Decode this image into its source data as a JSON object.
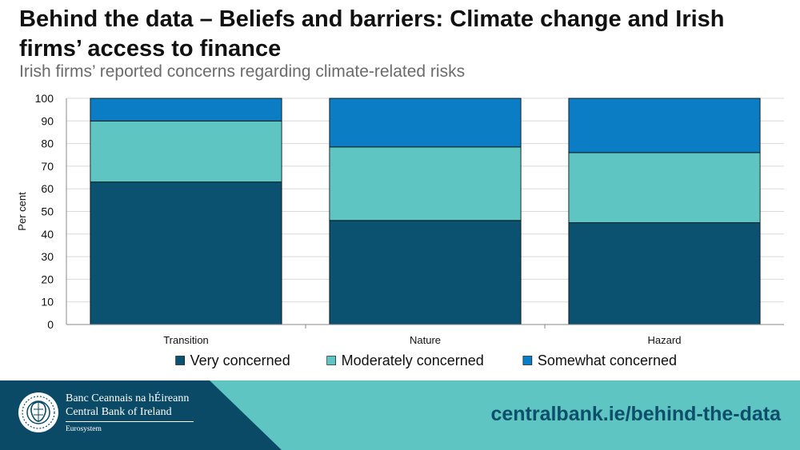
{
  "header": {
    "title": "Behind the data – Beliefs and barriers: Climate change and Irish firms’ access to finance",
    "subtitle": "Irish firms’ reported concerns regarding climate-related risks"
  },
  "chart_data": {
    "type": "bar",
    "stacked": true,
    "categories": [
      "Transition",
      "Nature",
      "Hazard"
    ],
    "series": [
      {
        "name": "Very concerned",
        "color": "#0b5270",
        "values": [
          63,
          46,
          45
        ]
      },
      {
        "name": "Moderately concerned",
        "color": "#5ec5c3",
        "values": [
          27,
          32.5,
          31
        ]
      },
      {
        "name": "Somewhat concerned",
        "color": "#0a7dc4",
        "values": [
          10,
          21.5,
          24
        ]
      }
    ],
    "ylabel": "Per cent",
    "ylim": [
      0,
      100
    ],
    "yticks": [
      0,
      10,
      20,
      30,
      40,
      50,
      60,
      70,
      80,
      90,
      100
    ],
    "grid": true,
    "legend": "bottom"
  },
  "footer": {
    "bank_name_irish": "Banc Ceannais na hÉireann",
    "bank_name_english": "Central Bank of Ireland",
    "eurosystem": "Eurosystem",
    "url": "centralbank.ie/behind-the-data",
    "colors": {
      "dark": "#0b4a66",
      "light": "#5ec5c3",
      "url_text": "#0d4f6b"
    }
  }
}
